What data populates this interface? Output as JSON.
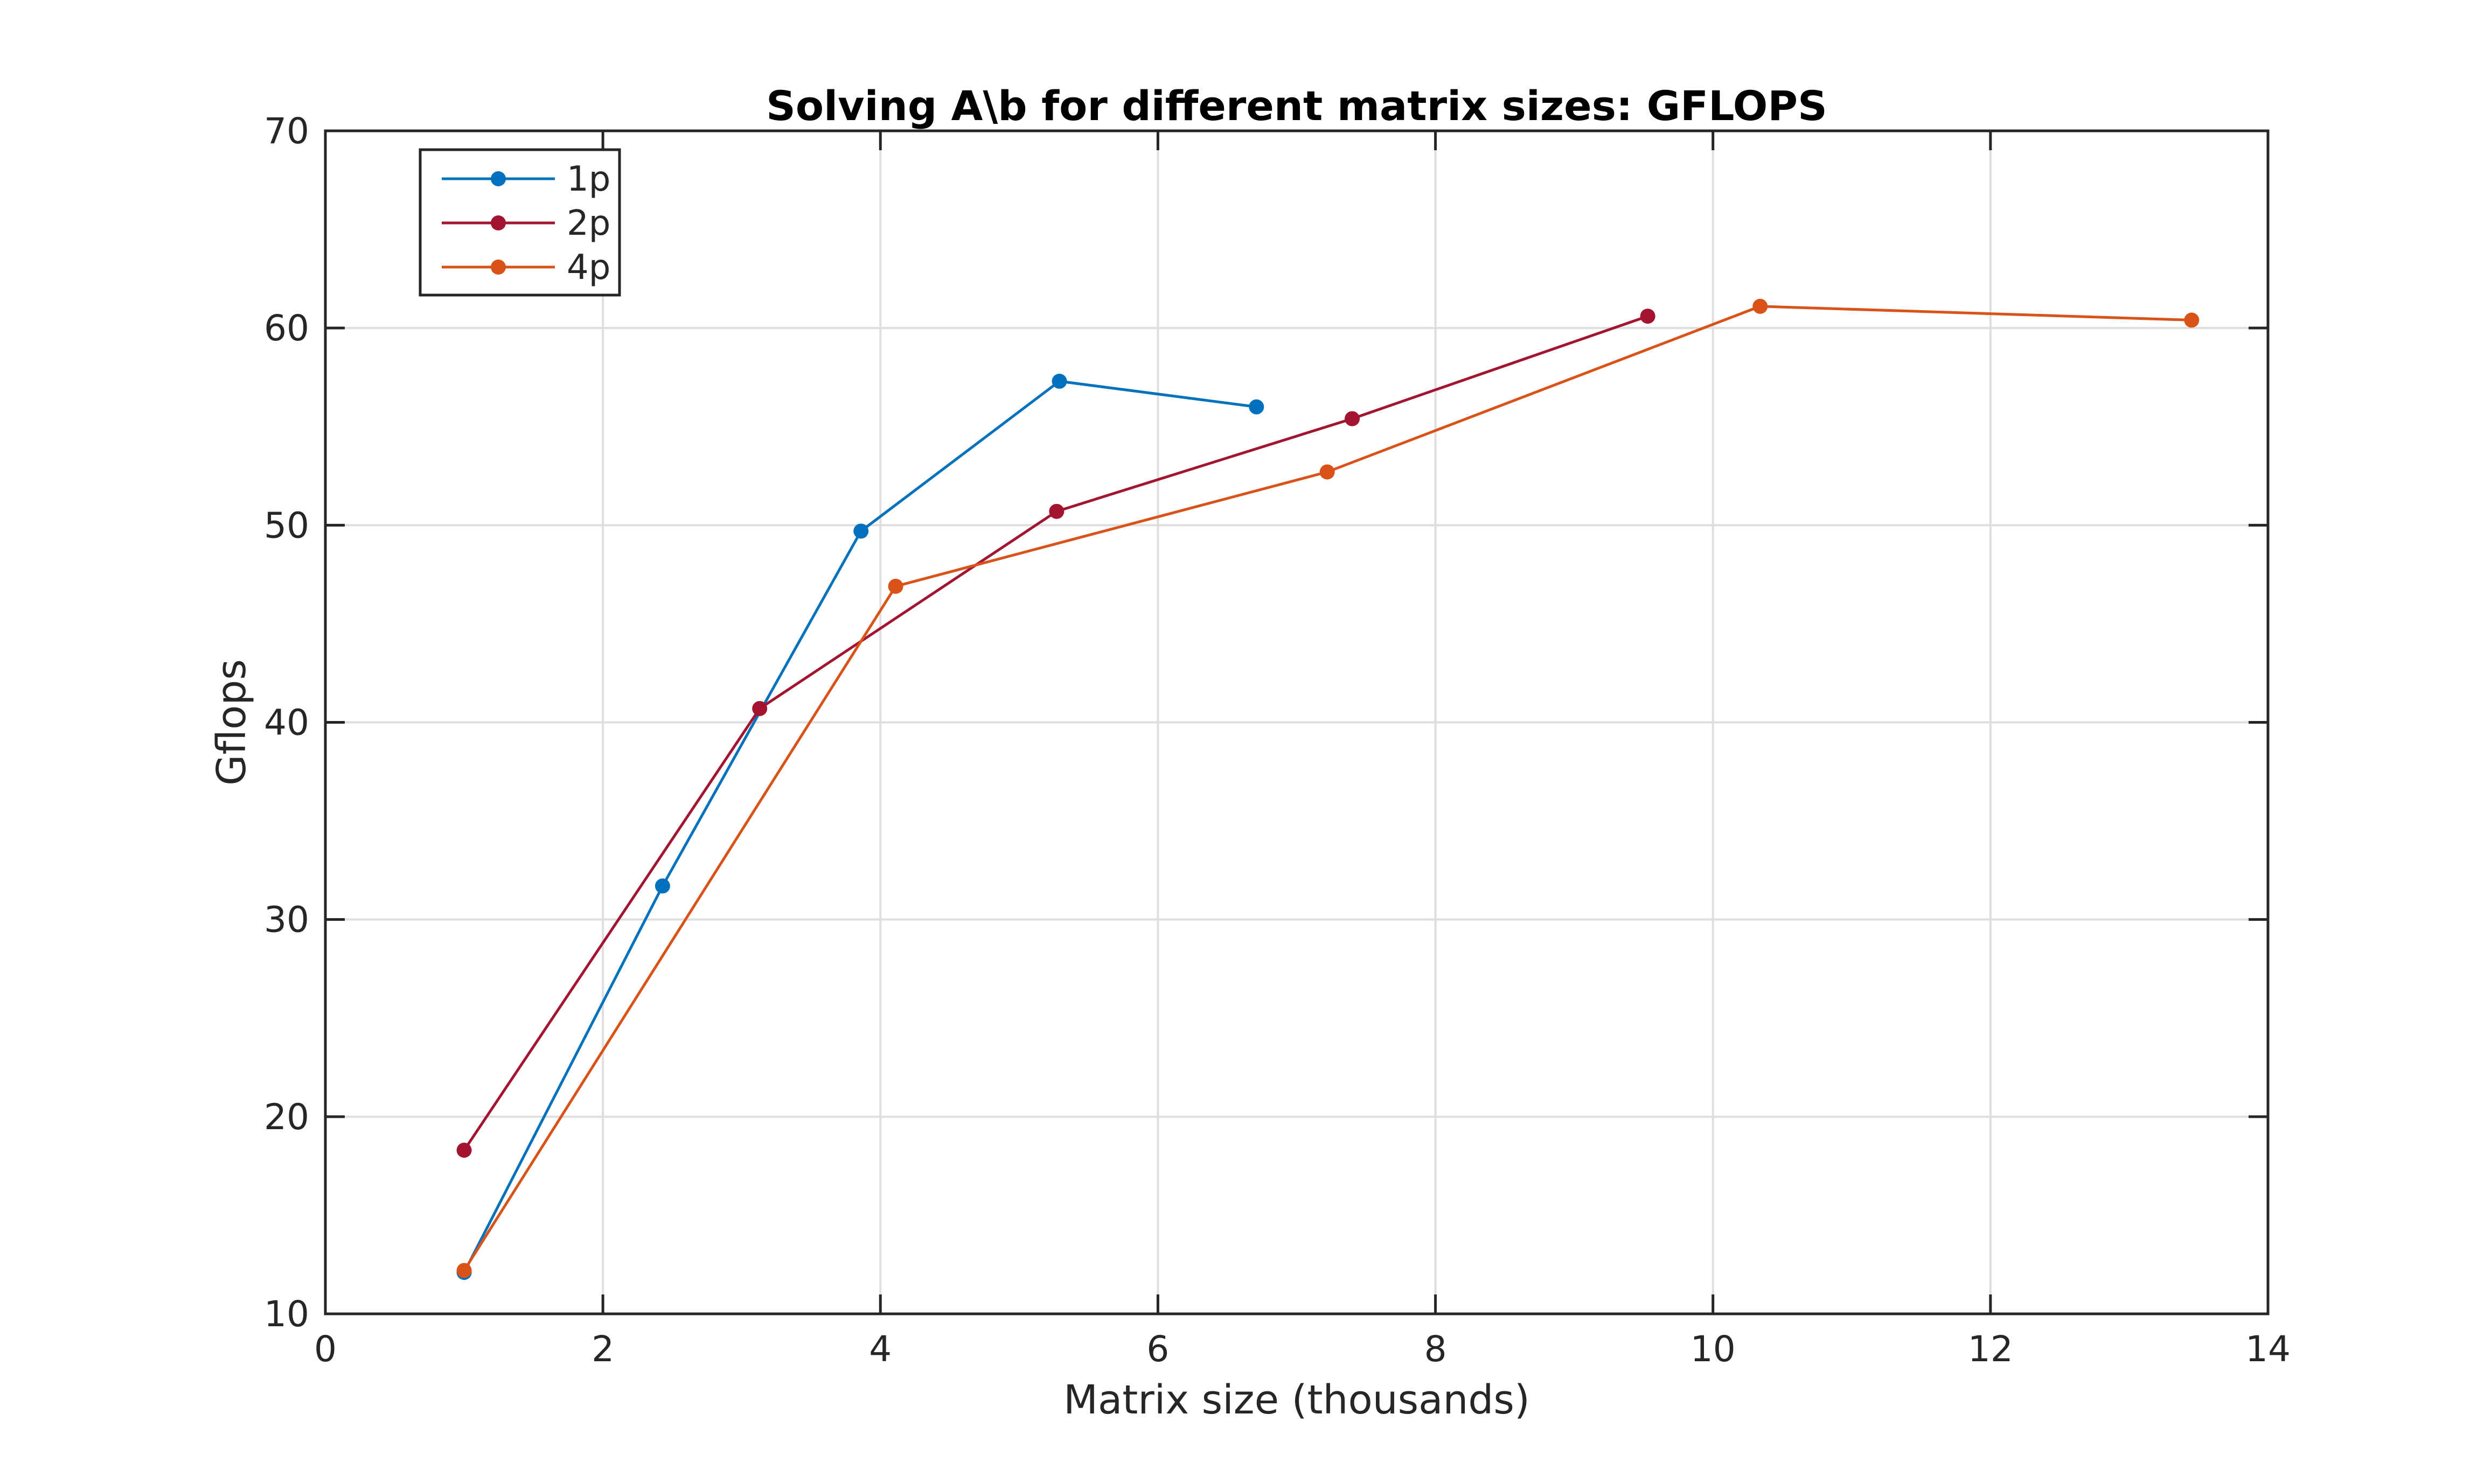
{
  "chart_data": {
    "type": "line",
    "title": "Solving A\\b for different matrix sizes: GFLOPS",
    "xlabel": "Matrix size (thousands)",
    "ylabel": "Gflops",
    "xlim": [
      0,
      14
    ],
    "ylim": [
      10,
      70
    ],
    "xticks": [
      "0",
      "2",
      "4",
      "6",
      "8",
      "10",
      "12",
      "14"
    ],
    "yticks": [
      "10",
      "20",
      "30",
      "40",
      "50",
      "60",
      "70"
    ],
    "grid": true,
    "legend_position": "top-left",
    "series": [
      {
        "name": "1p",
        "color": "#0072BD",
        "x": [
          1.0,
          2.43,
          3.86,
          5.29,
          6.71
        ],
        "y": [
          12.1,
          31.7,
          49.7,
          57.3,
          56.0
        ]
      },
      {
        "name": "2p",
        "color": "#A2142F",
        "x": [
          1.0,
          3.13,
          5.27,
          7.4,
          9.53
        ],
        "y": [
          18.3,
          40.7,
          50.7,
          55.4,
          60.6
        ]
      },
      {
        "name": "4p",
        "color": "#D95319",
        "x": [
          1.0,
          4.11,
          7.22,
          10.34,
          13.45
        ],
        "y": [
          12.2,
          46.9,
          52.7,
          61.1,
          60.4
        ]
      }
    ]
  }
}
